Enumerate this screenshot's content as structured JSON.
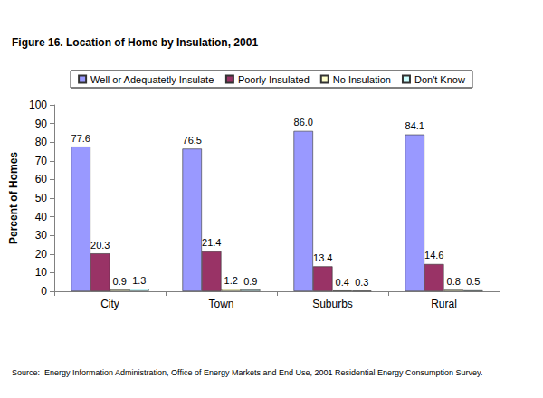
{
  "chart_data": {
    "type": "bar",
    "title": "Figure 16. Location of Home by Insulation, 2001",
    "source": "Source:  Energy Information Administration, Office of Energy Markets and End Use, 2001 Residential Energy Consumption Survey.",
    "y_label": "Percent of Homes",
    "categories": [
      "City",
      "Town",
      "Suburbs",
      "Rural"
    ],
    "series": [
      {
        "name": "Well or Adequatetly Insulate",
        "color": "#9999ff",
        "values": [
          77.6,
          76.5,
          86.0,
          84.1
        ],
        "value_labels": [
          "77.6",
          "76.5",
          "86.0",
          "84.1"
        ]
      },
      {
        "name": "Poorly Insulated",
        "color": "#993366",
        "values": [
          20.3,
          21.4,
          13.4,
          14.6
        ]
      },
      {
        "name": "No Insulation",
        "color": "#ffffcc",
        "values": [
          0.9,
          1.2,
          0.4,
          0.8
        ]
      },
      {
        "name": "Don't Know",
        "color": "#ccffff",
        "values": [
          1.3,
          0.9,
          0.3,
          0.5
        ]
      }
    ],
    "ylim": [
      0,
      100
    ],
    "yticks": [
      0,
      10,
      20,
      30,
      40,
      50,
      60,
      70,
      80,
      90,
      100
    ],
    "grid": false,
    "legend": "top",
    "data_labels": true
  }
}
